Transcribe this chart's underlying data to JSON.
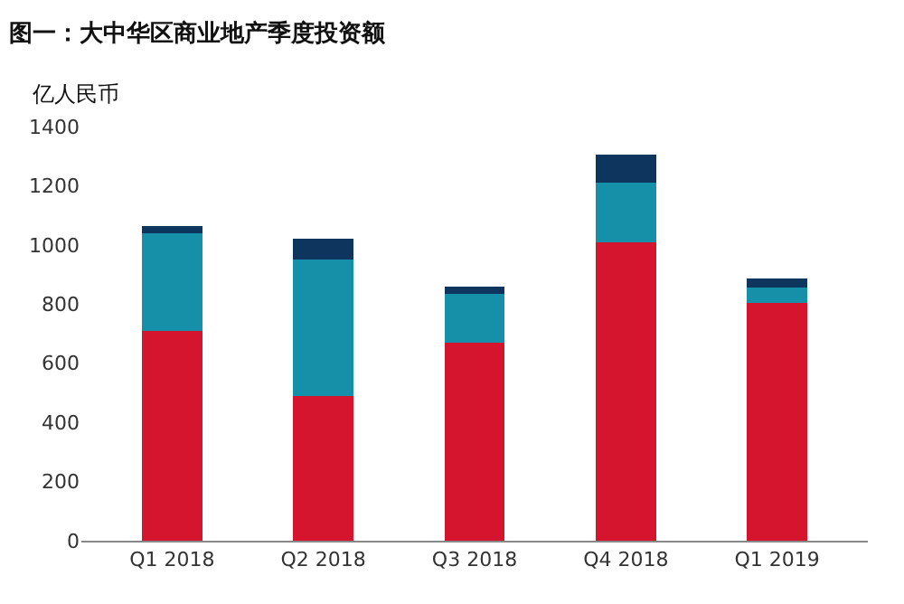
{
  "chart_data": {
    "type": "bar",
    "title": "图一：大中华区商业地产季度投资额",
    "ylabel": "亿人民币",
    "categories": [
      "Q1 2018",
      "Q2 2018",
      "Q3 2018",
      "Q4 2018",
      "Q1 2019"
    ],
    "stacked": true,
    "ylim": [
      0,
      1400
    ],
    "yticks": [
      0,
      200,
      400,
      600,
      800,
      1000,
      1200,
      1400
    ],
    "series": [
      {
        "color": "#d4152d",
        "values": [
          710,
          490,
          670,
          1010,
          805
        ]
      },
      {
        "color": "#168fa9",
        "values": [
          330,
          460,
          165,
          200,
          50
        ]
      },
      {
        "color": "#0d355e",
        "values": [
          25,
          70,
          25,
          95,
          30
        ]
      }
    ]
  }
}
